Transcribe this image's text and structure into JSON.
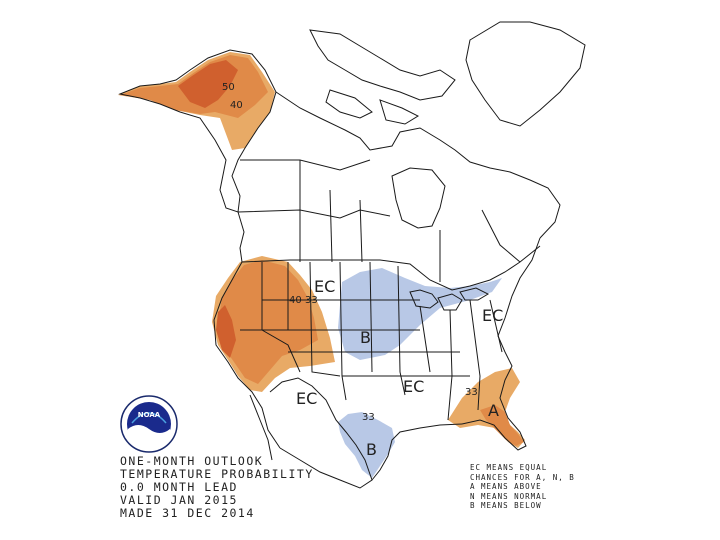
{
  "map": {
    "contour_labels": {
      "alaska_50": "50",
      "alaska_40": "40",
      "west_40": "40",
      "west_33": "33",
      "southeast_33": "33",
      "texas_33": "33"
    },
    "region_labels": {
      "ec_central": "EC",
      "ec_east": "EC",
      "ec_south_central": "EC",
      "ec_southwest": "EC",
      "b_north": "B",
      "b_texas": "B",
      "a_florida": "A"
    },
    "colors": {
      "above_33": "#e8aa66",
      "above_40": "#e08a48",
      "above_50": "#d0602e",
      "below_33": "#b8c8e6",
      "borders": "#1a1a1a"
    }
  },
  "title_block": {
    "line1": "ONE-MONTH OUTLOOK",
    "line2": "TEMPERATURE PROBABILITY",
    "line3": "0.0 MONTH LEAD",
    "line4": "VALID JAN 2015",
    "line5": "MADE 31 DEC 2014"
  },
  "legend": {
    "line1": "EC MEANS EQUAL",
    "line2": "CHANCES FOR A, N, B",
    "line3": "A MEANS ABOVE",
    "line4": "N MEANS NORMAL",
    "line5": "B MEANS BELOW"
  },
  "logo": {
    "text": "NOAA",
    "icon": "noaa-logo-icon"
  }
}
